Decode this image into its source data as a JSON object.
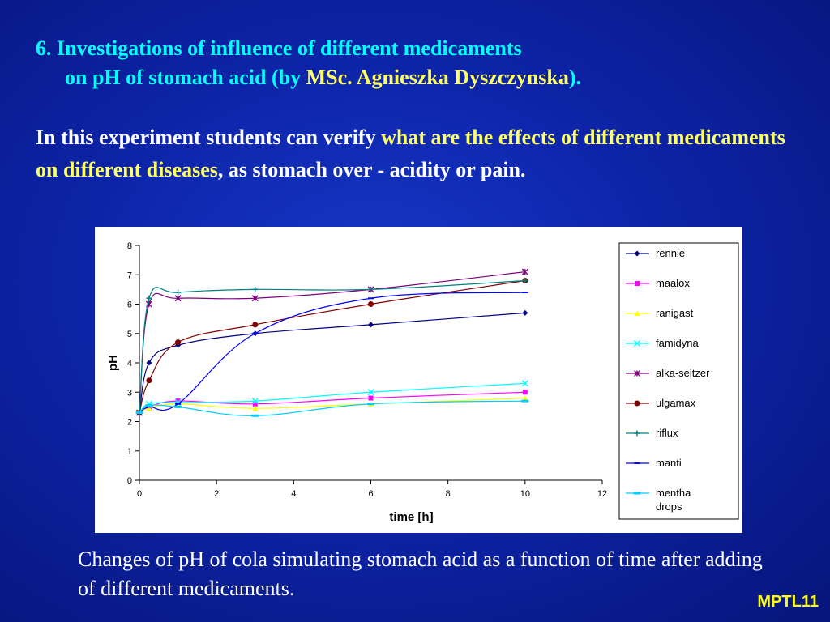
{
  "slide": {
    "title_line1": "6. Investigations of influence of different medicaments",
    "title_line2_a": "on pH of stomach acid (by ",
    "title_line2_author": "MSc. Agnieszka Dyszczynska",
    "title_line2_b": ").",
    "intro_a": "In this experiment students can verify ",
    "intro_highlight": "what are the effects of different medicaments on different diseases",
    "intro_b": ", as stomach over - acidity or pain.",
    "caption": "Changes of pH of cola simulating stomach acid as a function of time after adding of different medicaments.",
    "tag": "MPTL11"
  },
  "chart_data": {
    "type": "line",
    "title": "",
    "xlabel": "time [h]",
    "ylabel": "pH",
    "xlim": [
      0,
      12
    ],
    "ylim": [
      0,
      8
    ],
    "xticks": [
      0,
      2,
      4,
      6,
      8,
      10,
      12
    ],
    "yticks": [
      0,
      1,
      2,
      3,
      4,
      5,
      6,
      7,
      8
    ],
    "grid": false,
    "legend": "right",
    "series": [
      {
        "name": "rennie",
        "color": "#000080",
        "marker": "diamond",
        "x": [
          0,
          0.25,
          1,
          3,
          6,
          10
        ],
        "y": [
          2.3,
          4.0,
          4.6,
          5.0,
          5.3,
          5.7
        ]
      },
      {
        "name": "maalox",
        "color": "#ff00ff",
        "marker": "square",
        "x": [
          0,
          0.25,
          1,
          3,
          6,
          10
        ],
        "y": [
          2.3,
          2.5,
          2.7,
          2.6,
          2.8,
          3.0
        ]
      },
      {
        "name": "ranigast",
        "color": "#ffff00",
        "marker": "triangle",
        "x": [
          0,
          0.25,
          1,
          3,
          6,
          10
        ],
        "y": [
          2.3,
          2.45,
          2.6,
          2.45,
          2.6,
          2.8
        ]
      },
      {
        "name": "famidyna",
        "color": "#00ffff",
        "marker": "x",
        "x": [
          0,
          0.25,
          1,
          3,
          6,
          10
        ],
        "y": [
          2.3,
          2.6,
          2.65,
          2.7,
          3.0,
          3.3
        ]
      },
      {
        "name": "alka-seltzer",
        "color": "#800080",
        "marker": "star",
        "x": [
          0,
          0.25,
          1,
          3,
          6,
          10
        ],
        "y": [
          2.3,
          6.0,
          6.2,
          6.2,
          6.5,
          7.1
        ]
      },
      {
        "name": "ulgamax",
        "color": "#800000",
        "marker": "circle",
        "x": [
          0,
          0.25,
          1,
          3,
          6,
          10
        ],
        "y": [
          2.3,
          3.4,
          4.7,
          5.3,
          6.0,
          6.8
        ]
      },
      {
        "name": "riflux",
        "color": "#008080",
        "marker": "plus",
        "x": [
          0,
          0.25,
          1,
          3,
          6,
          10
        ],
        "y": [
          2.3,
          6.2,
          6.4,
          6.5,
          6.5,
          6.8
        ]
      },
      {
        "name": "manti",
        "color": "#0000ff",
        "marker": "dash",
        "x": [
          0,
          0.25,
          1,
          3,
          6,
          10
        ],
        "y": [
          2.3,
          2.5,
          2.6,
          5.0,
          6.2,
          6.4
        ]
      },
      {
        "name": "mentha drops",
        "color": "#00ccff",
        "marker": "bar",
        "x": [
          0,
          0.25,
          1,
          3,
          6,
          10
        ],
        "y": [
          2.3,
          2.55,
          2.5,
          2.2,
          2.6,
          2.7
        ]
      }
    ]
  }
}
